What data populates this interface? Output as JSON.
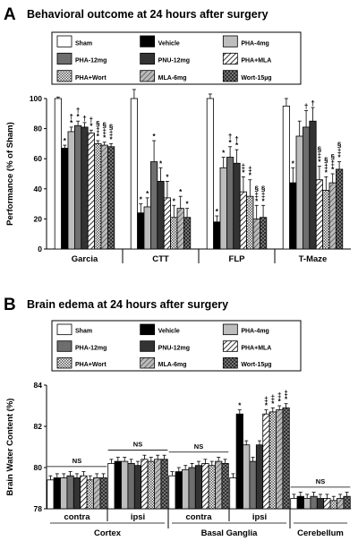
{
  "series": [
    {
      "name": "Sham",
      "pattern": "white"
    },
    {
      "name": "Vehicle",
      "pattern": "black"
    },
    {
      "name": "PHA-4mg",
      "pattern": "lightgray"
    },
    {
      "name": "PHA-12mg",
      "pattern": "gray"
    },
    {
      "name": "PNU-12mg",
      "pattern": "darkgray"
    },
    {
      "name": "PHA+MLA",
      "pattern": "diagonal"
    },
    {
      "name": "PHA+Wort",
      "pattern": "check"
    },
    {
      "name": "MLA-6mg",
      "pattern": "hatchgray"
    },
    {
      "name": "Wort-15µg",
      "pattern": "crosshatch"
    }
  ],
  "chart_data": [
    {
      "type": "bar",
      "panel_label": "A",
      "title": "Behavioral outcome at 24 hours after surgery",
      "ylabel": "Performance (% of Sham)",
      "ylim": [
        0,
        100
      ],
      "yticks": [
        0,
        20,
        40,
        60,
        80,
        100
      ],
      "categories": [
        "Garcia",
        "CTT",
        "FLP",
        "T-Maze"
      ],
      "values": [
        [
          100,
          67,
          78,
          82,
          81,
          77,
          70,
          69,
          68
        ],
        [
          100,
          24,
          28,
          58,
          45,
          34,
          21,
          27,
          21
        ],
        [
          100,
          18,
          54,
          61,
          57,
          38,
          35,
          20,
          21
        ],
        [
          95,
          44,
          75,
          81,
          85,
          46,
          39,
          44,
          53
        ]
      ],
      "errors": [
        [
          1,
          2,
          3,
          3,
          3,
          2,
          2,
          2,
          2
        ],
        [
          6,
          6,
          6,
          14,
          9,
          11,
          8,
          8,
          6
        ],
        [
          3,
          4,
          7,
          7,
          9,
          10,
          11,
          9,
          8
        ],
        [
          5,
          10,
          10,
          11,
          9,
          9,
          9,
          6,
          5
        ]
      ],
      "annotations": [
        [
          "",
          "*",
          "†\n*",
          "†\n*",
          "†",
          "†\n*",
          "§\n‡\n*",
          "§\n‡\n*",
          "§\n‡\n*"
        ],
        [
          "",
          "*",
          "*",
          "*",
          "*",
          "*",
          "*",
          "*",
          "*"
        ],
        [
          "",
          "*",
          "*",
          "†\n*",
          "†\n*",
          "‡\n*",
          "‡\n*",
          "§\n‡\n*",
          "§\n‡\n*"
        ],
        [
          "",
          "*",
          "",
          "†",
          "†",
          "§\n‡\n*",
          "§\n‡\n*",
          "§\n‡\n*",
          "§\n‡\n*"
        ]
      ]
    },
    {
      "type": "bar",
      "panel_label": "B",
      "title": "Brain edema at 24 hours after surgery",
      "ylabel": "Brain Water Content (%)",
      "ylim": [
        78,
        84
      ],
      "yticks": [
        78,
        80,
        82,
        84
      ],
      "categories": [
        "contra",
        "ipsi",
        "contra",
        "ipsi",
        ""
      ],
      "regions": [
        {
          "label": "Cortex",
          "span": [
            0,
            1
          ]
        },
        {
          "label": "Basal Ganglia",
          "span": [
            2,
            3
          ]
        },
        {
          "label": "Cerebellum",
          "span": [
            4,
            4
          ]
        }
      ],
      "values": [
        [
          79.4,
          79.5,
          79.5,
          79.6,
          79.5,
          79.6,
          79.4,
          79.5,
          79.5
        ],
        [
          80.2,
          80.3,
          80.3,
          80.2,
          80.1,
          80.4,
          80.3,
          80.4,
          80.4
        ],
        [
          79.6,
          79.8,
          79.9,
          80.0,
          80.1,
          80.2,
          80.1,
          80.3,
          80.2
        ],
        [
          79.5,
          82.6,
          81.1,
          80.3,
          81.1,
          82.6,
          82.7,
          82.8,
          82.9
        ]
      ],
      "values_cerebellum": [
        78.5,
        78.6,
        78.5,
        78.6,
        78.5,
        78.5,
        78.4,
        78.5,
        78.6
      ],
      "errors_all": 0.2,
      "ns_labels": [
        "NS",
        "NS",
        "NS",
        "NS"
      ],
      "ipsi_bg_annotations": [
        "",
        "*",
        "",
        "",
        "",
        "‡\n*",
        "‡\n*",
        "‡\n*",
        "‡\n*"
      ]
    }
  ],
  "x_region_labels": {
    "cortex": "Cortex",
    "bg": "Basal Ganglia",
    "cb": "Cerebellum"
  }
}
